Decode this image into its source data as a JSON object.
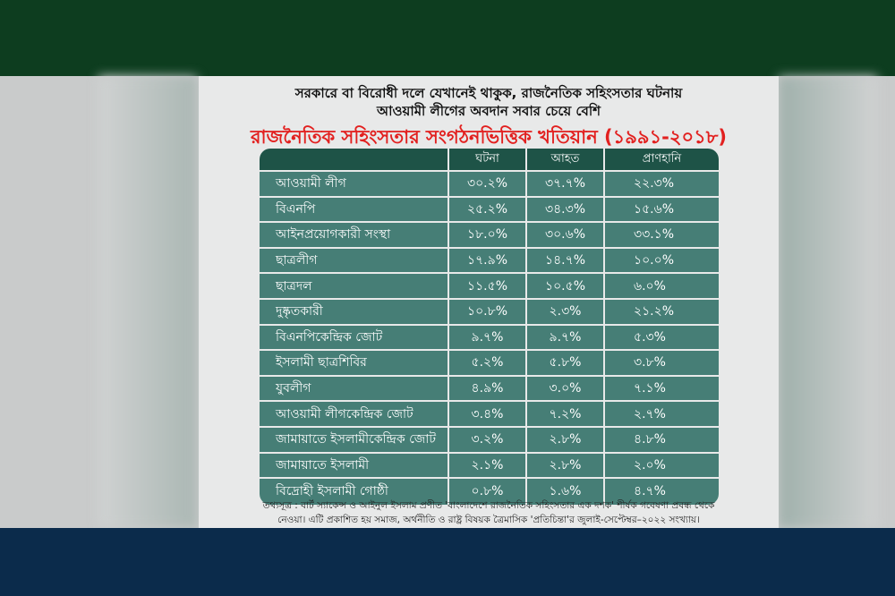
{
  "headline": {
    "line1": "সরকারে বা বিরোধী দলে যেখানেই থাকুক, রাজনৈতিক সহিংসতার ঘটনায়",
    "line2": "আওয়ামী লীগের অবদান সবার চেয়ে বেশি",
    "title": "রাজনৈতিক সহিংসতার সংগঠনভিত্তিক খতিয়ান (১৯৯১-২০১৮)"
  },
  "table": {
    "columns": [
      "",
      "ঘটনা",
      "আহত",
      "প্রাণহানি"
    ],
    "rows": [
      [
        "আওয়ামী লীগ",
        "৩০.২%",
        "৩৭.৭%",
        "২২.৩%"
      ],
      [
        "বিএনপি",
        "২৫.২%",
        "৩৪.৩%",
        "১৫.৬%"
      ],
      [
        "আইনপ্রয়োগকারী সংস্থা",
        "১৮.০%",
        "৩০.৬%",
        "৩৩.১%"
      ],
      [
        "ছাত্রলীগ",
        "১৭.৯%",
        "১৪.৭%",
        "১০.০%"
      ],
      [
        "ছাত্রদল",
        "১১.৫%",
        "১০.৫%",
        "৬.০%"
      ],
      [
        "দুষ্কৃতকারী",
        "১০.৮%",
        "২.৩%",
        "২১.২%"
      ],
      [
        "বিএনপিকেন্দ্রিক জোট",
        "৯.৭%",
        "৯.৭%",
        "৫.৩%"
      ],
      [
        "ইসলামী ছাত্রশিবির",
        "৫.২%",
        "৫.৮%",
        "৩.৮%"
      ],
      [
        "যুবলীগ",
        "৪.৯%",
        "৩.০%",
        "৭.১%"
      ],
      [
        "আওয়ামী লীগকেন্দ্রিক জোট",
        "৩.৪%",
        "৭.২%",
        "২.৭%"
      ],
      [
        "জামায়াতে ইসলামীকেন্দ্রিক জোট",
        "৩.২%",
        "২.৮%",
        "৪.৮%"
      ],
      [
        "জামায়াতে ইসলামী",
        "২.১%",
        "২.৮%",
        "২.০%"
      ],
      [
        "বিদ্রোহী ইসলামী গোষ্ঠী",
        "০.৮%",
        "১.৬%",
        "৪.৭%"
      ]
    ]
  },
  "source": {
    "line1": "তথ্যসূত্র : বার্ট স্যাকেন্স ও আইনুল ইসলাম প্রণীত 'বাংলাদেশে রাজনৈতিক সহিংসতার এক দশক' শীর্ষক গবেষণা প্রবন্ধ থেকে",
    "line2": "নেওয়া। এটি প্রকাশিত হয় সমাজ, অর্থনীতি ও রাষ্ট্র বিষয়ক ত্রৈমাসিক 'প্রতিচিন্তা'র জুলাই-সেপ্টেম্বর–২০২২ সংখ্যায়।"
  },
  "colors": {
    "title": "#e2201f",
    "table_cell": "#467e76",
    "table_header": "#1e5347",
    "top_band": "#0d3d1f",
    "bottom_band": "#0b2b4b"
  }
}
